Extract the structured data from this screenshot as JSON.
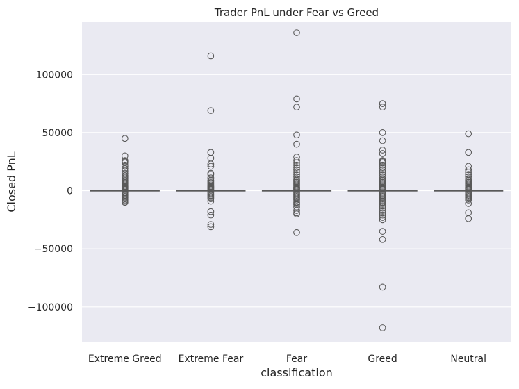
{
  "chart_data": {
    "type": "box",
    "title": "Trader PnL under Fear vs Greed",
    "xlabel": "classification",
    "ylabel": "Closed PnL",
    "categories": [
      "Extreme Greed",
      "Extreme Fear",
      "Fear",
      "Greed",
      "Neutral"
    ],
    "ylim": [
      -130000,
      145000
    ],
    "yticks": [
      {
        "value": 100000,
        "label": "100000"
      },
      {
        "value": 50000,
        "label": "50000"
      },
      {
        "value": 0,
        "label": "0"
      },
      {
        "value": -50000,
        "label": "−50000"
      },
      {
        "value": -100000,
        "label": "−100000"
      }
    ],
    "grid": true,
    "legend": "none",
    "colors": {
      "plot_background": "#EAEAF2",
      "grid": "#FFFFFF",
      "box_line": "#595959",
      "text": "#262626"
    },
    "boxes": [
      {
        "category": "Extreme Greed",
        "q1": 0,
        "median": 0,
        "q3": 0,
        "whisker_low": 0,
        "whisker_high": 0,
        "outliers": [
          45000,
          30000,
          26000,
          25000,
          24000,
          22000,
          21000,
          19000,
          17000,
          15000,
          13000,
          12000,
          11000,
          10000,
          9000,
          8000,
          7000,
          6000,
          5000,
          4000,
          3500,
          3000,
          2500,
          2000,
          1500,
          1000,
          -1000,
          -1500,
          -2000,
          -3000,
          -4000,
          -5000,
          -6000,
          -7000,
          -8000,
          -9000,
          -10000
        ]
      },
      {
        "category": "Extreme Fear",
        "q1": 0,
        "median": 0,
        "q3": 0,
        "whisker_low": 0,
        "whisker_high": 0,
        "outliers": [
          116000,
          69000,
          33000,
          28000,
          23000,
          21000,
          15000,
          14000,
          11000,
          9000,
          8000,
          7000,
          6000,
          5000,
          4000,
          3500,
          3000,
          2500,
          2000,
          1500,
          1000,
          -1000,
          -2000,
          -3000,
          -4000,
          -5000,
          -6000,
          -7000,
          -9000,
          -18000,
          -21000,
          -29000,
          -31000
        ]
      },
      {
        "category": "Fear",
        "q1": 0,
        "median": 0,
        "q3": 0,
        "whisker_low": 0,
        "whisker_high": 0,
        "outliers": [
          136000,
          79000,
          72000,
          48000,
          40000,
          29000,
          26000,
          24000,
          22000,
          20000,
          18000,
          16000,
          14000,
          12000,
          10000,
          9000,
          8000,
          7000,
          6000,
          5000,
          4000,
          3000,
          2500,
          2000,
          1500,
          1000,
          -1000,
          -2000,
          -3000,
          -4000,
          -5000,
          -6000,
          -7000,
          -8000,
          -10000,
          -11000,
          -12000,
          -14000,
          -17000,
          -19000,
          -20000,
          -36000
        ]
      },
      {
        "category": "Greed",
        "q1": 0,
        "median": 0,
        "q3": 0,
        "whisker_low": 0,
        "whisker_high": 0,
        "outliers": [
          75000,
          72000,
          50000,
          43000,
          35000,
          32000,
          26000,
          25000,
          24000,
          22000,
          20000,
          18000,
          16000,
          14000,
          12000,
          10000,
          9000,
          8000,
          7000,
          6000,
          5000,
          4000,
          3000,
          2500,
          2000,
          1500,
          1000,
          -1000,
          -2000,
          -3000,
          -4000,
          -5000,
          -6000,
          -7000,
          -8000,
          -9000,
          -10000,
          -11000,
          -13000,
          -15000,
          -17000,
          -19000,
          -21000,
          -23000,
          -25000,
          -35000,
          -42000,
          -83000,
          -118000
        ]
      },
      {
        "category": "Neutral",
        "q1": 0,
        "median": 0,
        "q3": 0,
        "whisker_low": 0,
        "whisker_high": 0,
        "outliers": [
          49000,
          33000,
          21000,
          18000,
          16000,
          14000,
          12000,
          10000,
          9000,
          8000,
          7000,
          6000,
          5000,
          4000,
          3000,
          2500,
          2000,
          1500,
          1000,
          -1000,
          -2000,
          -3000,
          -4000,
          -5000,
          -6000,
          -7000,
          -8000,
          -11000,
          -19000,
          -24000
        ]
      }
    ]
  }
}
